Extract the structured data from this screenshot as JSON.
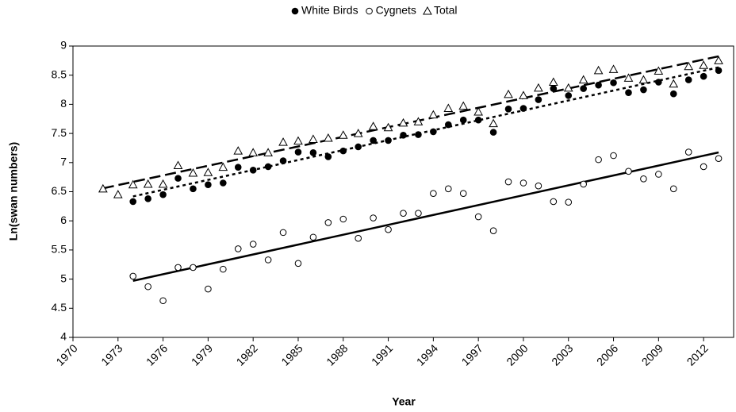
{
  "chart_data": {
    "type": "scatter",
    "xlabel": "Year",
    "ylabel": "Ln(swan numbers)",
    "xlim": [
      1970,
      2014
    ],
    "xticks": [
      1970,
      1973,
      1976,
      1979,
      1982,
      1985,
      1988,
      1991,
      1994,
      1997,
      2000,
      2003,
      2006,
      2009,
      2012
    ],
    "ylim": [
      4,
      9
    ],
    "yticks": [
      4,
      4.5,
      5,
      5.5,
      6,
      6.5,
      7,
      7.5,
      8,
      8.5,
      9
    ],
    "legend": "top",
    "series": [
      {
        "name": "White Birds",
        "color": "#000000",
        "marker": "filled-circle",
        "trendline": "dotted",
        "x": [
          1974,
          1975,
          1976,
          1977,
          1978,
          1979,
          1980,
          1981,
          1982,
          1983,
          1984,
          1985,
          1986,
          1987,
          1988,
          1989,
          1990,
          1991,
          1992,
          1993,
          1994,
          1995,
          1996,
          1997,
          1998,
          1999,
          2000,
          2001,
          2002,
          2003,
          2004,
          2005,
          2006,
          2007,
          2008,
          2009,
          2010,
          2011,
          2012,
          2013
        ],
        "values": [
          6.33,
          6.38,
          6.45,
          6.73,
          6.55,
          6.62,
          6.65,
          6.92,
          6.87,
          6.93,
          7.03,
          7.18,
          7.17,
          7.1,
          7.2,
          7.27,
          7.38,
          7.38,
          7.47,
          7.48,
          7.53,
          7.65,
          7.73,
          7.73,
          7.52,
          7.92,
          7.93,
          8.08,
          8.27,
          8.15,
          8.27,
          8.33,
          8.37,
          8.2,
          8.25,
          8.38,
          8.18,
          8.42,
          8.48,
          8.58
        ]
      },
      {
        "name": "Cygnets",
        "color": "#000000",
        "marker": "open-circle",
        "trendline": "solid",
        "x": [
          1974,
          1975,
          1976,
          1977,
          1978,
          1979,
          1980,
          1981,
          1982,
          1983,
          1984,
          1985,
          1986,
          1987,
          1988,
          1989,
          1990,
          1991,
          1992,
          1993,
          1994,
          1995,
          1996,
          1997,
          1998,
          1999,
          2000,
          2001,
          2002,
          2003,
          2004,
          2005,
          2006,
          2007,
          2008,
          2009,
          2010,
          2011,
          2012,
          2013
        ],
        "values": [
          5.05,
          4.87,
          4.63,
          5.2,
          5.2,
          4.83,
          5.17,
          5.52,
          5.6,
          5.33,
          5.8,
          5.27,
          5.72,
          5.97,
          6.03,
          5.7,
          6.05,
          5.85,
          6.13,
          6.13,
          6.47,
          6.55,
          6.47,
          6.07,
          5.83,
          6.67,
          6.65,
          6.6,
          6.33,
          6.32,
          6.63,
          7.05,
          7.12,
          6.85,
          6.72,
          6.8,
          6.55,
          7.18,
          6.93,
          7.07
        ]
      },
      {
        "name": "Total",
        "color": "#000000",
        "marker": "open-triangle",
        "trendline": "dashed",
        "x": [
          1972,
          1973,
          1974,
          1975,
          1976,
          1977,
          1978,
          1979,
          1980,
          1981,
          1982,
          1983,
          1984,
          1985,
          1986,
          1987,
          1988,
          1989,
          1990,
          1991,
          1992,
          1993,
          1994,
          1995,
          1996,
          1997,
          1998,
          1999,
          2000,
          2001,
          2002,
          2003,
          2004,
          2005,
          2006,
          2007,
          2008,
          2009,
          2010,
          2011,
          2012,
          2013
        ],
        "values": [
          6.55,
          6.45,
          6.62,
          6.63,
          6.63,
          6.95,
          6.82,
          6.83,
          6.92,
          7.2,
          7.17,
          7.17,
          7.35,
          7.37,
          7.4,
          7.42,
          7.47,
          7.5,
          7.62,
          7.6,
          7.68,
          7.7,
          7.82,
          7.93,
          7.97,
          7.87,
          7.67,
          8.17,
          8.15,
          8.28,
          8.38,
          8.28,
          8.42,
          8.58,
          8.6,
          8.45,
          8.42,
          8.57,
          8.35,
          8.65,
          8.67,
          8.75
        ]
      }
    ]
  }
}
